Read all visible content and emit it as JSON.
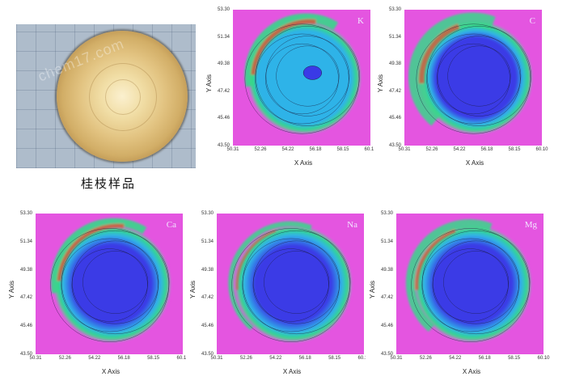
{
  "photo": {
    "caption": "桂枝样品",
    "watermark": "chem17.com"
  },
  "axes": {
    "xlabel": "X Axis",
    "ylabel": "Y Axis",
    "yticks": [
      "53.30",
      "51.34",
      "49.38",
      "47.42",
      "45.46",
      "43.50"
    ],
    "xticks": [
      "50.31",
      "52.26",
      "54.22",
      "56.18",
      "58.15",
      "60.10"
    ]
  },
  "maps": [
    {
      "element": "K"
    },
    {
      "element": "C"
    },
    {
      "element": "Ca"
    },
    {
      "element": "Na"
    },
    {
      "element": "Mg"
    }
  ],
  "colors": {
    "background": "#e455e0",
    "low": "#3a3ae6",
    "mid": "#2fb3e8",
    "high": "#35d88a",
    "peak": "#d8553a"
  }
}
